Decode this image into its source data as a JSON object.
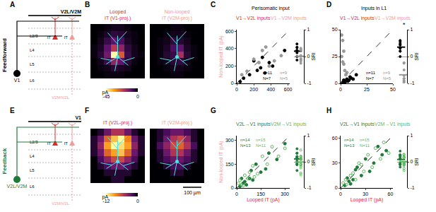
{
  "figure": {
    "letters": [
      "A",
      "B",
      "C",
      "D",
      "E",
      "F",
      "G",
      "H"
    ],
    "row_labels": [
      "Feedforward",
      "Feedback"
    ],
    "diagrams": [
      {
        "area": "V2L/V2M",
        "source": "V1",
        "dotted_target": "V2M/V2L",
        "layers": [
          "L2/3",
          "L4",
          "L5",
          "L6"
        ],
        "neurons": [
          "IT",
          "IT"
        ]
      },
      {
        "area": "V1",
        "source": "V2L/V2M",
        "dotted_target": "V2M/V2L",
        "layers": [
          "L2/3",
          "L4",
          "L5",
          "L6"
        ],
        "neurons": [
          "IT",
          "IT"
        ]
      }
    ]
  },
  "chart_data": [
    {
      "type": "heatmap",
      "title": [
        "Looped",
        "IT (V1-proj.)"
      ],
      "zlim": [
        -45,
        0
      ],
      "zticks": [
        -45,
        0
      ],
      "colorbar_label": "pA",
      "tick_labels": false,
      "cells": [
        [
          0,
          0,
          -1,
          -2,
          -2,
          -1,
          0,
          0
        ],
        [
          0,
          -1,
          -3,
          -5,
          -4,
          -2,
          -1,
          0
        ],
        [
          0,
          -2,
          -6,
          -10,
          -8,
          -3,
          -1,
          0
        ],
        [
          -1,
          -3,
          -10,
          -20,
          -15,
          -5,
          -2,
          0
        ],
        [
          -1,
          -4,
          -12,
          -45,
          -25,
          -6,
          -2,
          -1
        ],
        [
          0,
          -2,
          -6,
          -15,
          -10,
          -4,
          -1,
          0
        ],
        [
          0,
          -1,
          -2,
          -4,
          -3,
          -2,
          0,
          0
        ],
        [
          0,
          0,
          -1,
          -1,
          -1,
          0,
          0,
          0
        ]
      ]
    },
    {
      "type": "heatmap",
      "title": [
        "Non-looped",
        "IT (V2M-proj.)"
      ],
      "zlim": [
        -45,
        0
      ],
      "tick_labels": false,
      "cells": [
        [
          0,
          0,
          0,
          -1,
          -1,
          0,
          0,
          0
        ],
        [
          0,
          0,
          -1,
          -2,
          -2,
          -1,
          0,
          0
        ],
        [
          0,
          -1,
          -2,
          -5,
          -4,
          -2,
          0,
          0
        ],
        [
          0,
          -1,
          -3,
          -8,
          -10,
          -3,
          -1,
          0
        ],
        [
          0,
          -1,
          -4,
          -6,
          -18,
          -4,
          -1,
          0
        ],
        [
          0,
          -1,
          -2,
          -4,
          -5,
          -2,
          0,
          0
        ],
        [
          0,
          0,
          -1,
          -2,
          -2,
          -1,
          0,
          0
        ],
        [
          0,
          0,
          0,
          -1,
          -1,
          0,
          0,
          0
        ]
      ]
    },
    {
      "type": "heatmap",
      "title": [
        "IT (V2L-proj.)"
      ],
      "zlim": [
        -12,
        0
      ],
      "zticks": [
        -12,
        0
      ],
      "colorbar_label": "pA",
      "tick_labels": false,
      "cells": [
        [
          0,
          -1,
          -3,
          -5,
          -5,
          -3,
          -1,
          0
        ],
        [
          -1,
          -3,
          -7,
          -10,
          -12,
          -8,
          -3,
          -1
        ],
        [
          -1,
          -4,
          -9,
          -12,
          -11,
          -9,
          -4,
          -1
        ],
        [
          -1,
          -3,
          -7,
          -9,
          -10,
          -7,
          -3,
          -1
        ],
        [
          0,
          -2,
          -4,
          -6,
          -6,
          -4,
          -2,
          0
        ],
        [
          0,
          -1,
          -2,
          -3,
          -3,
          -2,
          -1,
          0
        ],
        [
          0,
          0,
          -1,
          -1,
          -1,
          -1,
          0,
          0
        ],
        [
          0,
          0,
          0,
          -1,
          -1,
          0,
          0,
          0
        ]
      ]
    },
    {
      "type": "heatmap",
      "title": [
        "IT (V2M-proj.)"
      ],
      "zlim": [
        -12,
        0
      ],
      "scale_bar": "100 µm",
      "tick_labels": false,
      "cells": [
        [
          0,
          -1,
          -2,
          -3,
          -3,
          -2,
          -1,
          0
        ],
        [
          0,
          -1,
          -3,
          -5,
          -6,
          -4,
          -1,
          0
        ],
        [
          0,
          -2,
          -4,
          -6,
          -7,
          -5,
          -2,
          0
        ],
        [
          0,
          -1,
          -3,
          -5,
          -5,
          -3,
          -1,
          0
        ],
        [
          0,
          -1,
          -2,
          -3,
          -3,
          -2,
          -1,
          0
        ],
        [
          0,
          0,
          -1,
          -2,
          -2,
          -1,
          0,
          0
        ],
        [
          0,
          0,
          0,
          -1,
          -1,
          0,
          0,
          0
        ],
        [
          0,
          0,
          0,
          0,
          0,
          0,
          0,
          0
        ]
      ]
    },
    {
      "type": "scatter",
      "title": "Perisomatic input",
      "ylabel": "Non-looped IT (pA)",
      "xlim": [
        0,
        620
      ],
      "xticks": [
        0,
        200,
        400,
        600
      ],
      "ylim": [
        0,
        620
      ],
      "yticks": [
        0,
        200,
        400,
        600
      ],
      "sri_label": "SRI",
      "sri_ylim": [
        -1,
        1
      ],
      "sri_yticks": [
        -1,
        0,
        1
      ],
      "series": [
        {
          "name": "V1→V2L inputs",
          "color": "#000000",
          "marker": "circle",
          "counts": [
            "n=11",
            "N=7"
          ],
          "x": [
            40,
            80,
            150,
            200,
            240,
            280,
            300,
            330,
            380,
            420,
            560
          ],
          "values": [
            20,
            60,
            100,
            260,
            150,
            180,
            300,
            120,
            240,
            200,
            380
          ],
          "sri": [
            0.33,
            0.14,
            0.2,
            -0.13,
            0.23,
            0.22,
            0,
            0.47,
            0.23,
            0.35,
            0.19
          ],
          "sri_mean": 0.2
        },
        {
          "name": "V1→V2M inputs",
          "color": "#999999",
          "marker": "circle",
          "counts": [
            "n=9",
            "N=5"
          ],
          "x": [
            60,
            120,
            200,
            260,
            300,
            340,
            380,
            440,
            520
          ],
          "values": [
            100,
            140,
            280,
            240,
            380,
            420,
            200,
            260,
            320
          ],
          "sri": [
            -0.25,
            -0.08,
            -0.17,
            0.04,
            -0.12,
            -0.11,
            0.31,
            0.26,
            0.24
          ],
          "sri_mean": 0.01
        }
      ]
    },
    {
      "type": "scatter",
      "title": "Inputs in L1",
      "xlim": [
        0,
        50
      ],
      "xticks": [
        0,
        25,
        50
      ],
      "ylim": [
        0,
        50
      ],
      "yticks": [
        0,
        25,
        50
      ],
      "sri_label": "SRI",
      "sri_ylim": [
        -1,
        1
      ],
      "sri_yticks": [
        -1,
        0,
        1
      ],
      "series": [
        {
          "name": "V1→V2L inputs",
          "color": "#000000",
          "marker": "circle",
          "counts": [
            "n=11",
            "N=7"
          ],
          "x": [
            2,
            3,
            5,
            6,
            8,
            10,
            12,
            4,
            15,
            7,
            9
          ],
          "values": [
            1,
            3,
            2,
            4,
            3,
            5,
            4,
            1,
            8,
            2,
            6
          ],
          "sri": [
            0.33,
            0,
            0.43,
            0.2,
            0.45,
            0.33,
            0.5,
            0.6,
            0.3,
            0.56,
            0.2
          ],
          "sri_mean": 0.35
        },
        {
          "name": "V1→V2M inputs",
          "color": "#999999",
          "marker": "circle",
          "counts": [
            "n=9",
            "N=5"
          ],
          "significance": "*",
          "x": [
            1,
            2,
            3,
            2,
            4,
            5,
            3,
            6,
            1
          ],
          "values": [
            45,
            40,
            30,
            20,
            12,
            8,
            18,
            10,
            25
          ],
          "sri": [
            -0.96,
            -0.9,
            -0.82,
            -0.82,
            -0.5,
            -0.23,
            -0.71,
            -0.25,
            -0.92
          ],
          "sri_mean": -0.68
        }
      ]
    },
    {
      "type": "scatter",
      "xlabel": "Looped IT (pA)",
      "ylabel": "Non-looped IT (pA)",
      "xlim": [
        0,
        330
      ],
      "xticks": [
        0,
        150,
        300
      ],
      "ylim": [
        0,
        330
      ],
      "yticks": [
        0,
        150,
        300
      ],
      "sri_label": "SRI",
      "sri_ylim": [
        -1,
        1
      ],
      "sri_yticks": [
        -1,
        0,
        1
      ],
      "series": [
        {
          "name": "V2L→V1 inputs",
          "color": "#1f7a3a",
          "marker": "circle",
          "counts": [
            "n=14",
            "N=13"
          ],
          "x": [
            20,
            40,
            60,
            80,
            100,
            120,
            150,
            180,
            200,
            250,
            300,
            30,
            50,
            90
          ],
          "values": [
            10,
            30,
            20,
            60,
            50,
            150,
            100,
            120,
            220,
            180,
            280,
            60,
            40,
            110
          ],
          "sri": [
            0.33,
            0.14,
            0.5,
            0.14,
            0.33,
            -0.11,
            0.2,
            0.2,
            -0.05,
            0.16,
            0.03,
            -0.33,
            0.11,
            -0.1
          ],
          "sri_mean": 0.11
        },
        {
          "name": "V2M→V1 inputs",
          "color": "#5cb85c",
          "marker": "circle-open",
          "counts": [
            "n=15",
            "N=11"
          ],
          "x": [
            10,
            30,
            50,
            70,
            100,
            130,
            160,
            190,
            220,
            260,
            300,
            20,
            40,
            110,
            80
          ],
          "values": [
            30,
            20,
            80,
            60,
            140,
            90,
            200,
            150,
            260,
            200,
            250,
            50,
            15,
            70,
            100
          ],
          "sri": [
            -0.5,
            0.2,
            -0.23,
            0.08,
            -0.17,
            0.18,
            -0.11,
            0.12,
            -0.08,
            0.13,
            0.09,
            -0.43,
            0.45,
            0.22,
            -0.11
          ],
          "sri_mean": -0.01
        }
      ]
    },
    {
      "type": "scatter",
      "xlabel": "Looped IT (pA)",
      "xlim": [
        0,
        63
      ],
      "xticks": [
        0,
        30,
        60
      ],
      "ylim": [
        0,
        63
      ],
      "yticks": [
        0,
        30,
        60
      ],
      "sri_label": "SRI",
      "sri_ylim": [
        -1,
        1
      ],
      "sri_yticks": [
        -1,
        0,
        1
      ],
      "series": [
        {
          "name": "V2L→V1 inputs",
          "color": "#1f7a3a",
          "marker": "circle",
          "counts": [
            "n=14",
            "N=13"
          ],
          "x": [
            5,
            10,
            15,
            20,
            25,
            30,
            35,
            40,
            45,
            50,
            8,
            12,
            18,
            55
          ],
          "values": [
            3,
            8,
            10,
            25,
            15,
            35,
            20,
            30,
            50,
            40,
            12,
            5,
            22,
            45
          ],
          "sri": [
            0.25,
            0.11,
            0.2,
            -0.11,
            0.25,
            -0.08,
            0.27,
            0.14,
            -0.05,
            0.11,
            -0.2,
            0.41,
            -0.1,
            0.1
          ],
          "sri_mean": 0.09
        },
        {
          "name": "V2M→V1 inputs",
          "color": "#5cb85c",
          "marker": "circle-open",
          "counts": [
            "n=15",
            "N=11"
          ],
          "x": [
            3,
            7,
            12,
            18,
            22,
            28,
            33,
            38,
            42,
            48,
            52,
            6,
            15,
            25,
            58
          ],
          "values": [
            6,
            4,
            15,
            10,
            30,
            20,
            40,
            25,
            48,
            35,
            55,
            10,
            18,
            28,
            42
          ],
          "sri": [
            -0.33,
            0.27,
            -0.11,
            0.29,
            -0.15,
            0.17,
            -0.1,
            0.21,
            -0.07,
            0.16,
            -0.03,
            -0.25,
            -0.09,
            -0.06,
            0.16
          ],
          "sri_mean": 0.01
        }
      ]
    }
  ]
}
